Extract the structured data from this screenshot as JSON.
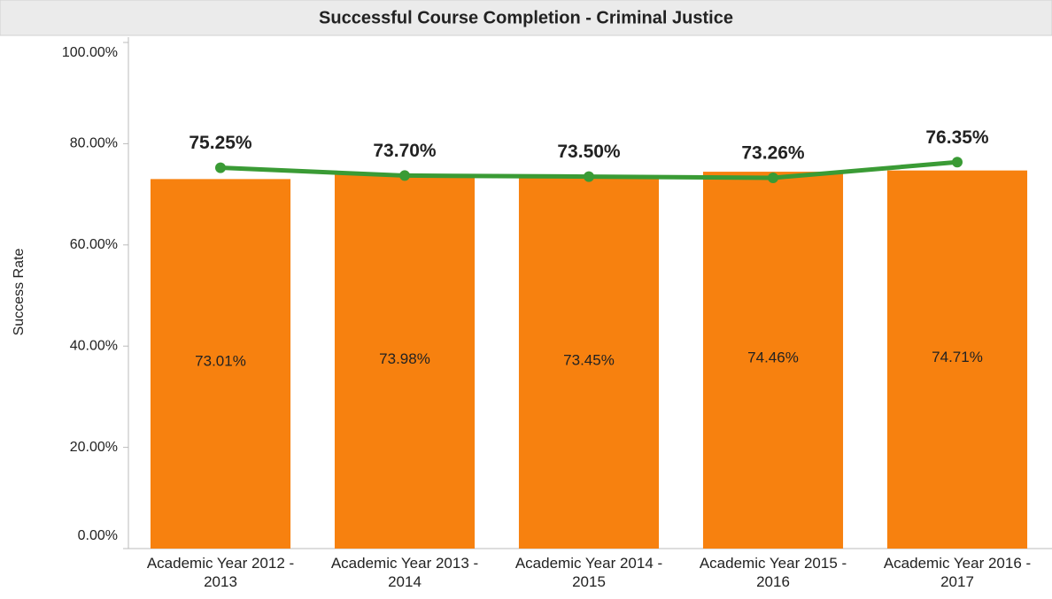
{
  "chart_data": {
    "type": "combo",
    "title": "Successful Course Completion - Criminal Justice",
    "ylabel": "Success Rate",
    "categories": [
      "Academic Year 2012 - 2013",
      "Academic Year 2013 - 2014",
      "Academic Year 2014 - 2015",
      "Academic Year 2015 - 2016",
      "Academic Year 2016 - 2017"
    ],
    "series": [
      {
        "type": "bar",
        "color": "#f7810f",
        "values": [
          73.01,
          73.98,
          73.45,
          74.46,
          74.71
        ],
        "value_labels": [
          "73.01%",
          "73.98%",
          "73.45%",
          "74.46%",
          "74.71%"
        ]
      },
      {
        "type": "line",
        "color": "#3a9b35",
        "values": [
          75.25,
          73.7,
          73.5,
          73.26,
          76.35
        ],
        "value_labels": [
          "75.25%",
          "73.70%",
          "73.50%",
          "73.26%",
          "76.35%"
        ]
      }
    ],
    "ylim": [
      0,
      100
    ],
    "yticks": [
      {
        "value": 0,
        "label": "0.00%"
      },
      {
        "value": 20,
        "label": "20.00%"
      },
      {
        "value": 40,
        "label": "40.00%"
      },
      {
        "value": 60,
        "label": "60.00%"
      },
      {
        "value": 80,
        "label": "80.00%"
      },
      {
        "value": 100,
        "label": "100.00%"
      }
    ],
    "grid": false
  }
}
